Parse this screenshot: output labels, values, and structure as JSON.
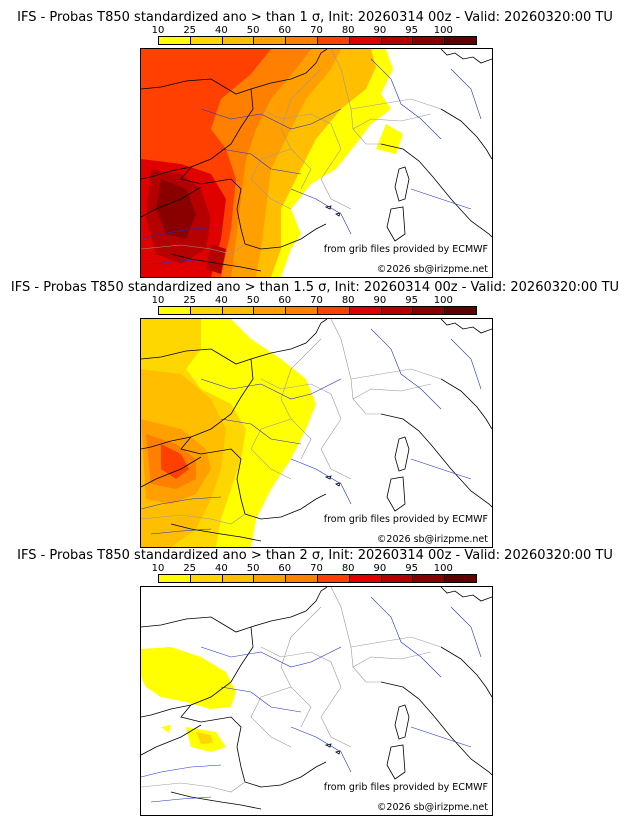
{
  "legend": {
    "ticks": [
      "10",
      "25",
      "40",
      "50",
      "60",
      "70",
      "80",
      "90",
      "95",
      "100"
    ],
    "colors": [
      "#ffff00",
      "#ffd700",
      "#ffbf00",
      "#ffa000",
      "#ff7f00",
      "#ff4000",
      "#e00000",
      "#b40000",
      "#8a0000",
      "#600000"
    ]
  },
  "panels": [
    {
      "title": "IFS - Probas T850  standardized ano > than 1 σ, Init: 20260314 00z - Valid: 20260320:00 TU",
      "source_label": "from grib files provided by ECMWF",
      "copyright": "©2026 sb@irizpme.net"
    },
    {
      "title": "IFS - Probas T850  standardized ano > than 1.5 σ, Init: 20260314 00z - Valid: 20260320:00 TU",
      "source_label": "from grib files provided by ECMWF",
      "copyright": "©2026 sb@irizpme.net"
    },
    {
      "title": "IFS - Probas T850  standardized ano > than 2 σ, Init: 20260314 00z - Valid: 20260320:00 TU",
      "source_label": "from grib files provided by ECMWF",
      "copyright": "©2026 sb@irizpme.net"
    }
  ]
}
